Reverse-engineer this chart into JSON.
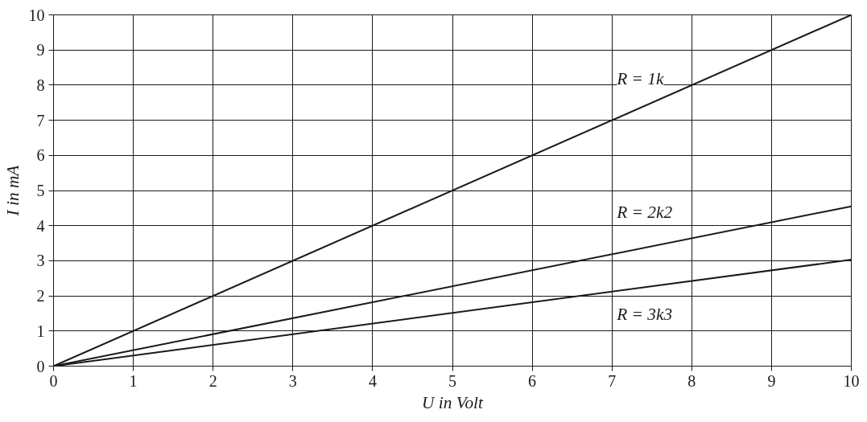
{
  "chart_data": {
    "type": "line",
    "xlabel": "U in Volt",
    "ylabel": "I in mA",
    "x": [
      0,
      10
    ],
    "series": [
      {
        "name": "R = 1k",
        "color": "#1a1a1a",
        "values": [
          0,
          10
        ]
      },
      {
        "name": "R = 2k2",
        "color": "#1a1a1a",
        "values": [
          0,
          4.55
        ]
      },
      {
        "name": "R = 3k3",
        "color": "#1a1a1a",
        "values": [
          0,
          3.03
        ]
      }
    ],
    "xlim": [
      0,
      10
    ],
    "ylim": [
      0,
      10
    ],
    "xticks": [
      0,
      1,
      2,
      3,
      4,
      5,
      6,
      7,
      8,
      9,
      10
    ],
    "yticks": [
      0,
      1,
      2,
      3,
      4,
      5,
      6,
      7,
      8,
      9,
      10
    ],
    "grid": true,
    "marker": "none",
    "line_style": "solid"
  }
}
